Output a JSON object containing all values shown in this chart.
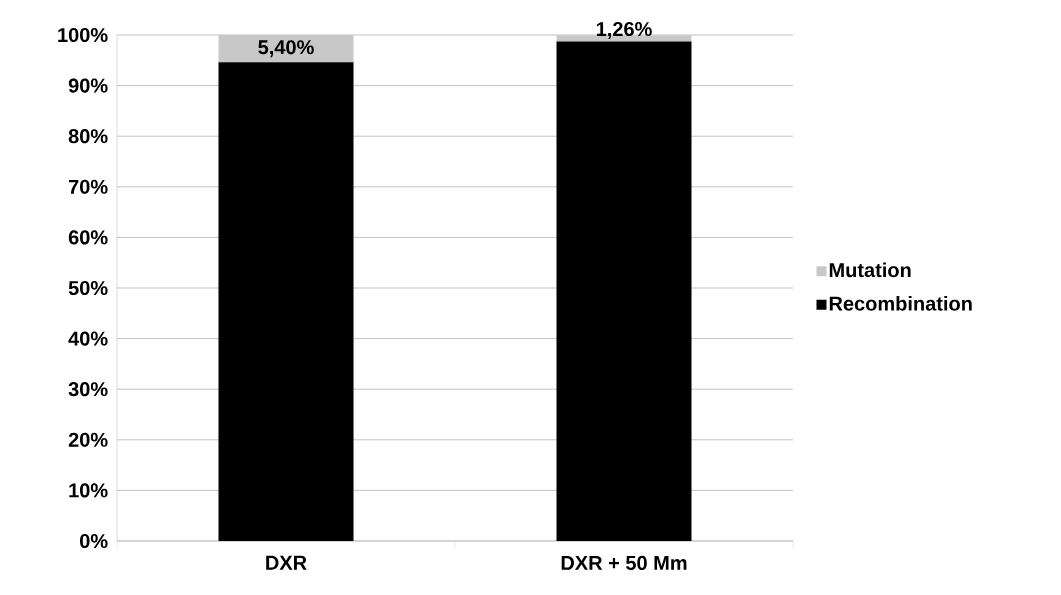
{
  "chart_data": {
    "type": "bar",
    "stacked": true,
    "categories": [
      "DXR",
      "DXR + 50 Mm"
    ],
    "series": [
      {
        "name": "Recombination",
        "color": "#000000",
        "values": [
          94.6,
          98.7
        ]
      },
      {
        "name": "Mutation",
        "color": "#c8c8c8",
        "values": [
          5.4,
          1.26
        ],
        "value_labels": [
          "5,40%",
          "1,26%"
        ]
      }
    ],
    "ylim": [
      0,
      100
    ],
    "yticks": [
      {
        "value": 0,
        "label": "0%"
      },
      {
        "value": 10,
        "label": "10%"
      },
      {
        "value": 20,
        "label": "20%"
      },
      {
        "value": 30,
        "label": "30%"
      },
      {
        "value": 40,
        "label": "40%"
      },
      {
        "value": 50,
        "label": "50%"
      },
      {
        "value": 60,
        "label": "60%"
      },
      {
        "value": 70,
        "label": "70%"
      },
      {
        "value": 80,
        "label": "80%"
      },
      {
        "value": 90,
        "label": "90%"
      },
      {
        "value": 100,
        "label": "100%"
      }
    ],
    "grid": "y",
    "legend": "right"
  }
}
